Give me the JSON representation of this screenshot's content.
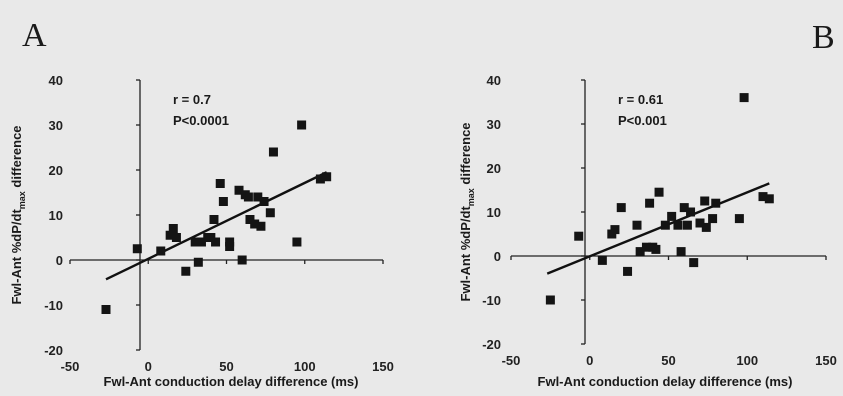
{
  "colors": {
    "background": "#e9e9e9",
    "marker": "#141414",
    "line": "#111111",
    "text": "#1a1a1a"
  },
  "chart_data": [
    {
      "type": "scatter",
      "panel_label": "A",
      "title": "",
      "xlabel": "Fwl-Ant conduction delay difference (ms)",
      "ylabel_main": "Fwl-Ant %dP/dt",
      "ylabel_sub": "max",
      "ylabel_end": " difference",
      "xlim": [
        -50,
        150
      ],
      "ylim": [
        -20,
        40
      ],
      "x_ticks": [
        "-50",
        "0",
        "50",
        "100",
        "150"
      ],
      "y_ticks": [
        "-20",
        "-10",
        "0",
        "10",
        "20",
        "30",
        "40"
      ],
      "annotation": [
        "r = 0.7",
        "P<0.0001"
      ],
      "trendline": {
        "x1": -27,
        "y1": -4.3,
        "x2": 114,
        "y2": 19.5
      },
      "points": [
        {
          "x": -27,
          "y": -11
        },
        {
          "x": -7,
          "y": 2.5
        },
        {
          "x": 8,
          "y": 2
        },
        {
          "x": 14,
          "y": 5.5
        },
        {
          "x": 16,
          "y": 7
        },
        {
          "x": 18,
          "y": 5
        },
        {
          "x": 24,
          "y": -2.5
        },
        {
          "x": 30,
          "y": 4
        },
        {
          "x": 32,
          "y": -0.5
        },
        {
          "x": 34,
          "y": 4
        },
        {
          "x": 38,
          "y": 5
        },
        {
          "x": 40,
          "y": 5
        },
        {
          "x": 42,
          "y": 9
        },
        {
          "x": 43,
          "y": 4
        },
        {
          "x": 46,
          "y": 17
        },
        {
          "x": 48,
          "y": 13
        },
        {
          "x": 52,
          "y": 4
        },
        {
          "x": 52,
          "y": 3
        },
        {
          "x": 58,
          "y": 15.5
        },
        {
          "x": 60,
          "y": 0
        },
        {
          "x": 62,
          "y": 14.5
        },
        {
          "x": 64,
          "y": 14
        },
        {
          "x": 65,
          "y": 9
        },
        {
          "x": 68,
          "y": 8
        },
        {
          "x": 70,
          "y": 14
        },
        {
          "x": 72,
          "y": 7.5
        },
        {
          "x": 74,
          "y": 13
        },
        {
          "x": 78,
          "y": 10.5
        },
        {
          "x": 80,
          "y": 24
        },
        {
          "x": 95,
          "y": 4
        },
        {
          "x": 98,
          "y": 30
        },
        {
          "x": 110,
          "y": 18
        },
        {
          "x": 114,
          "y": 18.5
        }
      ]
    },
    {
      "type": "scatter",
      "panel_label": "B",
      "title": "",
      "xlabel": "Fwl-Ant conduction delay difference (ms)",
      "ylabel_main": "Fwl-Ant %dP/dt",
      "ylabel_sub": "max",
      "ylabel_end": " difference",
      "xlim": [
        -50,
        150
      ],
      "ylim": [
        -20,
        40
      ],
      "x_ticks": [
        "-50",
        "0",
        "50",
        "100",
        "150"
      ],
      "y_ticks": [
        "-20",
        "-10",
        "0",
        "10",
        "20",
        "30",
        "40"
      ],
      "annotation": [
        "r = 0.61",
        "P<0.001"
      ],
      "trendline": {
        "x1": -27,
        "y1": -4,
        "x2": 114,
        "y2": 16.5
      },
      "points": [
        {
          "x": -25,
          "y": -10
        },
        {
          "x": -7,
          "y": 4.5
        },
        {
          "x": 8,
          "y": -1
        },
        {
          "x": 14,
          "y": 5
        },
        {
          "x": 16,
          "y": 6
        },
        {
          "x": 20,
          "y": 11
        },
        {
          "x": 24,
          "y": -3.5
        },
        {
          "x": 30,
          "y": 7
        },
        {
          "x": 32,
          "y": 1
        },
        {
          "x": 36,
          "y": 2
        },
        {
          "x": 38,
          "y": 12
        },
        {
          "x": 40,
          "y": 2
        },
        {
          "x": 42,
          "y": 1.5
        },
        {
          "x": 44,
          "y": 14.5
        },
        {
          "x": 48,
          "y": 7
        },
        {
          "x": 52,
          "y": 9
        },
        {
          "x": 56,
          "y": 7
        },
        {
          "x": 58,
          "y": 1
        },
        {
          "x": 60,
          "y": 11
        },
        {
          "x": 62,
          "y": 7
        },
        {
          "x": 64,
          "y": 10
        },
        {
          "x": 66,
          "y": -1.5
        },
        {
          "x": 70,
          "y": 7.5
        },
        {
          "x": 73,
          "y": 12.5
        },
        {
          "x": 74,
          "y": 6.5
        },
        {
          "x": 78,
          "y": 8.5
        },
        {
          "x": 80,
          "y": 12
        },
        {
          "x": 95,
          "y": 8.5
        },
        {
          "x": 98,
          "y": 36
        },
        {
          "x": 110,
          "y": 13.5
        },
        {
          "x": 114,
          "y": 13
        }
      ]
    }
  ]
}
